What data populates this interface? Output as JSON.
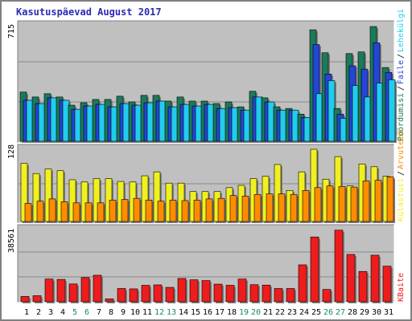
{
  "title": "Kasutuspäevad August 2017",
  "colors": {
    "visits": "#1a7a5a",
    "pages": "#2446d8",
    "files": "#22ccee",
    "hits": "#f0f020",
    "hosts": "#ff8c00",
    "kbytes": "#ee1c1c",
    "weekend_label": "#1a8a5a",
    "title": "#2b2bb5",
    "panel_bg": "#c0c0c0"
  },
  "right_labels": {
    "top": [
      "Pöördumisi",
      "Faile",
      "Lehekülgi"
    ],
    "middle": [
      "Külastusi",
      "Arvuteid"
    ],
    "bottom": [
      "KBaite"
    ]
  },
  "chart_data": [
    {
      "type": "bar",
      "name": "top-panel",
      "ymax_label": "715",
      "ylim": [
        0,
        715
      ],
      "categories": [
        "1",
        "2",
        "3",
        "4",
        "5",
        "6",
        "7",
        "8",
        "9",
        "10",
        "11",
        "12",
        "13",
        "14",
        "15",
        "16",
        "17",
        "18",
        "19",
        "20",
        "21",
        "22",
        "23",
        "24",
        "25",
        "26",
        "27",
        "28",
        "29",
        "30",
        "31"
      ],
      "weekend_days": [
        "5",
        "6",
        "12",
        "13",
        "19",
        "20",
        "26",
        "27"
      ],
      "series": [
        {
          "name": "Pöördumisi",
          "values": [
            300,
            270,
            290,
            270,
            220,
            235,
            255,
            255,
            275,
            240,
            280,
            280,
            245,
            270,
            245,
            245,
            230,
            240,
            210,
            305,
            265,
            210,
            200,
            165,
            680,
            540,
            200,
            535,
            545,
            700,
            450
          ]
        },
        {
          "name": "Faile",
          "values": [
            250,
            230,
            265,
            250,
            195,
            215,
            225,
            210,
            230,
            220,
            235,
            245,
            210,
            225,
            215,
            225,
            200,
            205,
            190,
            270,
            240,
            190,
            190,
            145,
            590,
            410,
            165,
            460,
            440,
            600,
            420
          ]
        },
        {
          "name": "Lehekülgi",
          "values": [
            250,
            230,
            265,
            250,
            195,
            215,
            225,
            210,
            230,
            220,
            235,
            245,
            210,
            225,
            215,
            225,
            200,
            205,
            190,
            270,
            240,
            190,
            190,
            145,
            290,
            370,
            140,
            340,
            270,
            355,
            375
          ]
        }
      ]
    },
    {
      "type": "bar",
      "name": "middle-panel",
      "ymax_label": "128",
      "ylim": [
        0,
        128
      ],
      "categories": [
        "1",
        "2",
        "3",
        "4",
        "5",
        "6",
        "7",
        "8",
        "9",
        "10",
        "11",
        "12",
        "13",
        "14",
        "15",
        "16",
        "17",
        "18",
        "19",
        "20",
        "21",
        "22",
        "23",
        "24",
        "25",
        "26",
        "27",
        "28",
        "29",
        "30",
        "31"
      ],
      "series": [
        {
          "name": "Külastusi",
          "values": [
            103,
            85,
            93,
            90,
            74,
            70,
            76,
            76,
            71,
            70,
            81,
            88,
            68,
            68,
            53,
            53,
            53,
            60,
            64,
            76,
            80,
            101,
            55,
            88,
            128,
            75,
            115,
            63,
            102,
            97,
            80
          ]
        },
        {
          "name": "Arvuteid",
          "values": [
            32,
            36,
            40,
            35,
            33,
            33,
            33,
            38,
            39,
            41,
            38,
            36,
            38,
            37,
            38,
            40,
            41,
            46,
            45,
            48,
            49,
            49,
            48,
            55,
            60,
            63,
            62,
            61,
            72,
            73,
            79
          ]
        }
      ]
    },
    {
      "type": "bar",
      "name": "bottom-panel",
      "ymax_label": "38561",
      "ylim": [
        0,
        38561
      ],
      "categories": [
        "1",
        "2",
        "3",
        "4",
        "5",
        "6",
        "7",
        "8",
        "9",
        "10",
        "11",
        "12",
        "13",
        "14",
        "15",
        "16",
        "17",
        "18",
        "19",
        "20",
        "21",
        "22",
        "23",
        "24",
        "25",
        "26",
        "27",
        "28",
        "29",
        "30",
        "31"
      ],
      "series": [
        {
          "name": "KBaite",
          "values": [
            2800,
            3200,
            12000,
            11800,
            9400,
            12800,
            14000,
            1500,
            7000,
            6800,
            8700,
            8900,
            7600,
            12300,
            11600,
            11200,
            9300,
            8700,
            12000,
            9000,
            8800,
            7000,
            7000,
            19500,
            34200,
            6500,
            37800,
            25000,
            16000,
            24600,
            18800
          ]
        }
      ]
    }
  ]
}
